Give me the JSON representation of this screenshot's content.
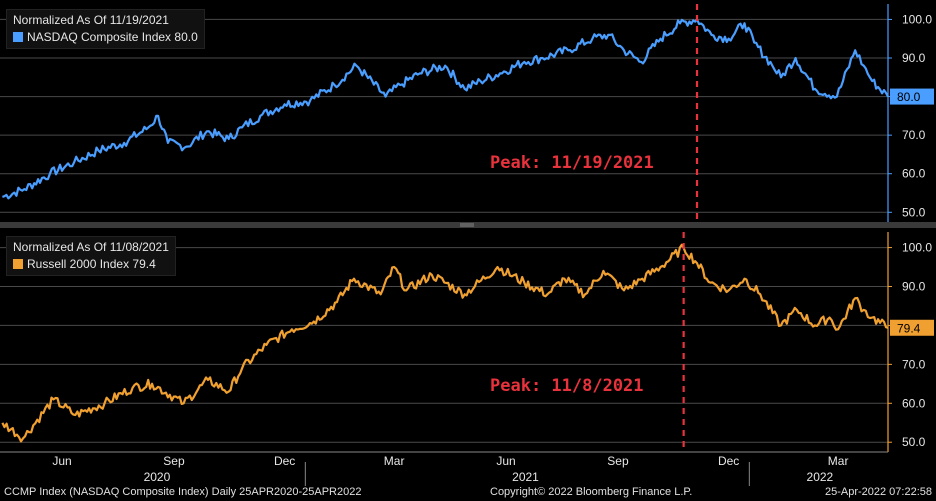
{
  "chart_data": [
    {
      "type": "line",
      "legend_header": "Normalized As Of 11/19/2021",
      "series": [
        {
          "name": "NASDAQ Composite Index",
          "last_value_label": "80.0",
          "color": "#4a9eff"
        }
      ],
      "ylim": [
        48,
        104
      ],
      "yticks": [
        50.0,
        60.0,
        70.0,
        80.0,
        90.0,
        100.0
      ],
      "last_value": 80.0,
      "peak_date": "11/19/2021",
      "annotation": "Peak: 11/19/2021",
      "annotation_color": "#e8323c",
      "points": [
        [
          "2020-04-27",
          54
        ],
        [
          "2020-05-15",
          56
        ],
        [
          "2020-06-05",
          60
        ],
        [
          "2020-06-25",
          63
        ],
        [
          "2020-07-15",
          66
        ],
        [
          "2020-08-05",
          68
        ],
        [
          "2020-08-25",
          72
        ],
        [
          "2020-09-02",
          75
        ],
        [
          "2020-09-10",
          68
        ],
        [
          "2020-09-25",
          67
        ],
        [
          "2020-10-12",
          71
        ],
        [
          "2020-10-30",
          69
        ],
        [
          "2020-11-10",
          72
        ],
        [
          "2020-11-25",
          75
        ],
        [
          "2020-12-15",
          78
        ],
        [
          "2021-01-05",
          79
        ],
        [
          "2021-01-25",
          83
        ],
        [
          "2021-02-12",
          88
        ],
        [
          "2021-03-08",
          80
        ],
        [
          "2021-03-20",
          83
        ],
        [
          "2021-04-05",
          86
        ],
        [
          "2021-04-26",
          88
        ],
        [
          "2021-05-12",
          82
        ],
        [
          "2021-05-25",
          84
        ],
        [
          "2021-06-10",
          86
        ],
        [
          "2021-06-30",
          89
        ],
        [
          "2021-07-15",
          90
        ],
        [
          "2021-08-05",
          92
        ],
        [
          "2021-08-25",
          95
        ],
        [
          "2021-09-07",
          96
        ],
        [
          "2021-09-20",
          92
        ],
        [
          "2021-10-04",
          89
        ],
        [
          "2021-10-20",
          95
        ],
        [
          "2021-11-05",
          99
        ],
        [
          "2021-11-19",
          100
        ],
        [
          "2021-12-01",
          96
        ],
        [
          "2021-12-15",
          95
        ],
        [
          "2021-12-28",
          99
        ],
        [
          "2022-01-05",
          94
        ],
        [
          "2022-01-20",
          88
        ],
        [
          "2022-01-27",
          85
        ],
        [
          "2022-02-08",
          90
        ],
        [
          "2022-02-24",
          82
        ],
        [
          "2022-03-14",
          80
        ],
        [
          "2022-03-29",
          92
        ],
        [
          "2022-04-05",
          88
        ],
        [
          "2022-04-12",
          84
        ],
        [
          "2022-04-25",
          80
        ]
      ]
    },
    {
      "type": "line",
      "legend_header": "Normalized As Of 11/08/2021",
      "series": [
        {
          "name": "Russell 2000 Index",
          "last_value_label": "79.4",
          "color": "#f0a030"
        }
      ],
      "ylim": [
        48,
        104
      ],
      "yticks": [
        50.0,
        60.0,
        70.0,
        80.0,
        90.0,
        100.0
      ],
      "last_value": 79.4,
      "peak_date": "11/8/2021",
      "annotation": "Peak: 11/8/2021",
      "annotation_color": "#e8323c",
      "points": [
        [
          "2020-04-27",
          55
        ],
        [
          "2020-05-14",
          51
        ],
        [
          "2020-06-08",
          61
        ],
        [
          "2020-06-26",
          57
        ],
        [
          "2020-07-20",
          60
        ],
        [
          "2020-08-12",
          64
        ],
        [
          "2020-08-28",
          65
        ],
        [
          "2020-09-23",
          60
        ],
        [
          "2020-10-13",
          66
        ],
        [
          "2020-10-30",
          63
        ],
        [
          "2020-11-10",
          69
        ],
        [
          "2020-11-30",
          75
        ],
        [
          "2020-12-21",
          79
        ],
        [
          "2021-01-08",
          81
        ],
        [
          "2021-01-27",
          86
        ],
        [
          "2021-02-10",
          92
        ],
        [
          "2021-03-04",
          88
        ],
        [
          "2021-03-15",
          95
        ],
        [
          "2021-03-25",
          89
        ],
        [
          "2021-04-15",
          93
        ],
        [
          "2021-05-12",
          88
        ],
        [
          "2021-06-08",
          95
        ],
        [
          "2021-06-30",
          91
        ],
        [
          "2021-07-19",
          88
        ],
        [
          "2021-08-02",
          92
        ],
        [
          "2021-08-19",
          88
        ],
        [
          "2021-09-03",
          94
        ],
        [
          "2021-09-20",
          89
        ],
        [
          "2021-10-05",
          92
        ],
        [
          "2021-10-20",
          95
        ],
        [
          "2021-11-08",
          100
        ],
        [
          "2021-11-19",
          96
        ],
        [
          "2021-11-30",
          91
        ],
        [
          "2021-12-15",
          89
        ],
        [
          "2021-12-28",
          92
        ],
        [
          "2022-01-10",
          88
        ],
        [
          "2022-01-27",
          80
        ],
        [
          "2022-02-09",
          84
        ],
        [
          "2022-02-24",
          80
        ],
        [
          "2022-03-08",
          82
        ],
        [
          "2022-03-15",
          79
        ],
        [
          "2022-03-29",
          87
        ],
        [
          "2022-04-05",
          84
        ],
        [
          "2022-04-12",
          82
        ],
        [
          "2022-04-25",
          79.4
        ]
      ]
    }
  ],
  "x_axis": {
    "start": "2020-04-25",
    "end": "2022-04-25",
    "months": [
      {
        "label": "Jun",
        "date": "2020-06-15"
      },
      {
        "label": "Sep",
        "date": "2020-09-15"
      },
      {
        "label": "Dec",
        "date": "2020-12-15"
      },
      {
        "label": "Mar",
        "date": "2021-03-15"
      },
      {
        "label": "Jun",
        "date": "2021-06-15"
      },
      {
        "label": "Sep",
        "date": "2021-09-15"
      },
      {
        "label": "Dec",
        "date": "2021-12-15"
      },
      {
        "label": "Mar",
        "date": "2022-03-15"
      }
    ],
    "years": [
      {
        "label": "2020",
        "date": "2020-09-01"
      },
      {
        "label": "2021",
        "date": "2021-07-01"
      },
      {
        "label": "2022",
        "date": "2022-02-28"
      }
    ],
    "year_dividers": [
      "2021-01-01",
      "2022-01-01"
    ]
  },
  "footer": {
    "left": "CCMP Index (NASDAQ Composite Index)  Daily 25APR2020-25APR2022",
    "center": "Copyright© 2022 Bloomberg Finance L.P.",
    "right": "25-Apr-2022 07:22:58"
  }
}
